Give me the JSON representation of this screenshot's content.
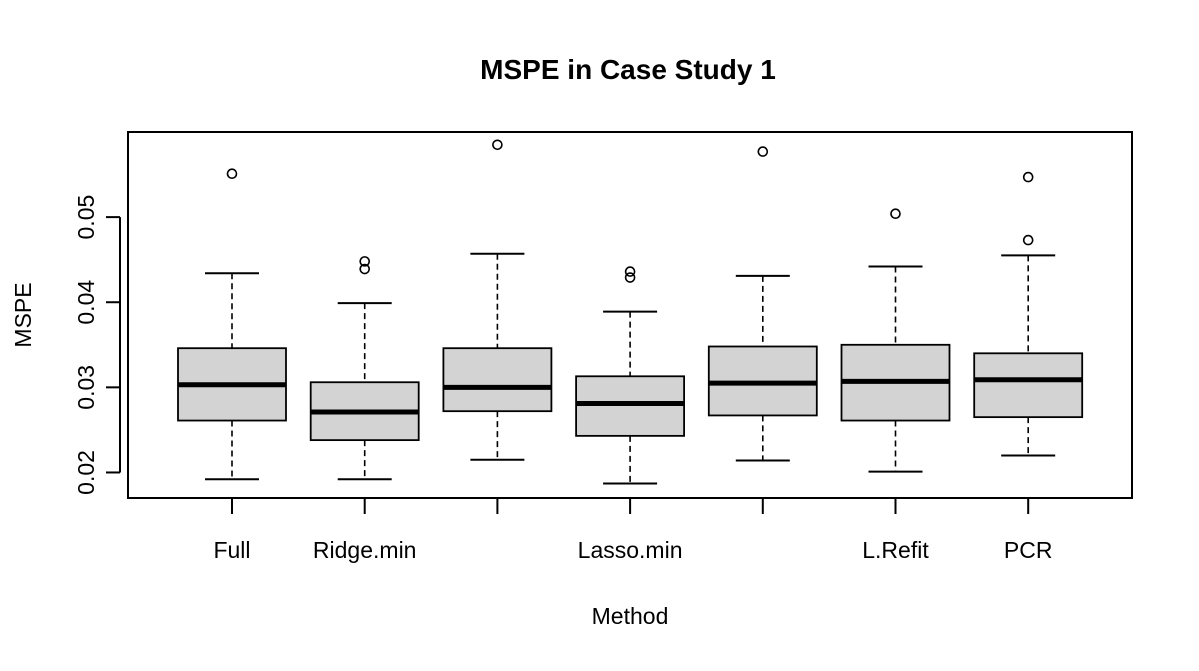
{
  "chart_data": {
    "type": "box",
    "title": "MSPE in Case Study 1",
    "xlabel": "Method",
    "ylabel": "MSPE",
    "categories": [
      "Full",
      "Ridge.min",
      "",
      "Lasso.min",
      "",
      "L.Refit",
      "PCR"
    ],
    "ylim": [
      0.017,
      0.06
    ],
    "yticks": [
      0.02,
      0.03,
      0.04,
      0.05
    ],
    "ytick_labels": [
      "0.02",
      "0.03",
      "0.04",
      "0.05"
    ],
    "grid": false,
    "legend": "none",
    "box_fill": "#d3d3d3",
    "line_color": "#000000",
    "boxes": [
      {
        "min": 0.0192,
        "q1": 0.0261,
        "median": 0.0303,
        "q3": 0.0346,
        "max": 0.0434,
        "outliers": [
          0.0551
        ]
      },
      {
        "min": 0.0192,
        "q1": 0.0238,
        "median": 0.0271,
        "q3": 0.0306,
        "max": 0.0399,
        "outliers": [
          0.0439,
          0.0448
        ]
      },
      {
        "min": 0.0215,
        "q1": 0.0272,
        "median": 0.03,
        "q3": 0.0346,
        "max": 0.0457,
        "outliers": [
          0.0585
        ]
      },
      {
        "min": 0.0187,
        "q1": 0.0243,
        "median": 0.0281,
        "q3": 0.0313,
        "max": 0.0389,
        "outliers": [
          0.0429,
          0.0436
        ]
      },
      {
        "min": 0.0214,
        "q1": 0.0267,
        "median": 0.0305,
        "q3": 0.0348,
        "max": 0.0431,
        "outliers": [
          0.0577
        ]
      },
      {
        "min": 0.0201,
        "q1": 0.0261,
        "median": 0.0307,
        "q3": 0.035,
        "max": 0.0442,
        "outliers": [
          0.0504
        ]
      },
      {
        "min": 0.022,
        "q1": 0.0265,
        "median": 0.0309,
        "q3": 0.034,
        "max": 0.0455,
        "outliers": [
          0.0473,
          0.0547
        ]
      }
    ]
  }
}
